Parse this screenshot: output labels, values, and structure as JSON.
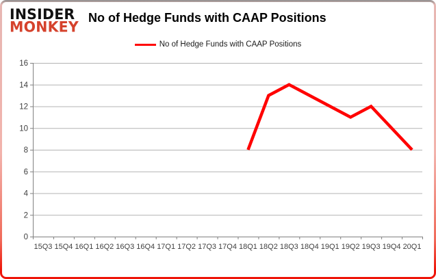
{
  "logo": {
    "line1": "INSIDER",
    "line2": "MONKEY"
  },
  "header": {
    "title": "No of Hedge Funds with CAAP Positions"
  },
  "legend": {
    "label": "No of Hedge Funds with CAAP Positions"
  },
  "colors": {
    "series_line": "#ff0000",
    "logo_accent": "#d5422c",
    "gridline": "#b3b3b3",
    "axis": "#808080",
    "tick_text": "#404040",
    "frame_bottom": "#ee1408"
  },
  "chart_data": {
    "type": "line",
    "title": "No of Hedge Funds with CAAP Positions",
    "categories": [
      "15Q3",
      "15Q4",
      "16Q1",
      "16Q2",
      "16Q3",
      "16Q4",
      "17Q1",
      "17Q2",
      "17Q3",
      "17Q4",
      "18Q1",
      "18Q2",
      "18Q3",
      "18Q4",
      "19Q1",
      "19Q2",
      "19Q3",
      "19Q4",
      "20Q1"
    ],
    "series": [
      {
        "name": "No of Hedge Funds with CAAP Positions",
        "values": [
          null,
          null,
          null,
          null,
          null,
          null,
          null,
          null,
          null,
          null,
          8,
          13,
          14,
          13,
          12,
          11,
          12,
          10,
          8
        ]
      }
    ],
    "xlabel": "",
    "ylabel": "",
    "ylim": [
      0,
      16
    ],
    "yticks": [
      0,
      2,
      4,
      6,
      8,
      10,
      12,
      14,
      16
    ],
    "grid": true,
    "legend_position": "top-center"
  }
}
